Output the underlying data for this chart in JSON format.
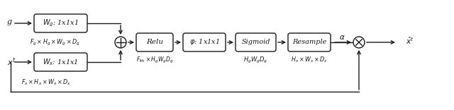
{
  "bg_color": "#ffffff",
  "line_color": "#1a1a1a",
  "box_color": "#ffffff",
  "box_edge": "#1a1a1a",
  "fig_width": 6.4,
  "fig_height": 1.56,
  "dpi": 100,
  "g_label": "g",
  "wg_box_label": "$W_g$: 1x1x1",
  "wg_box_subscript": "$F_g \\times H_g \\times W_g \\times D_g$",
  "xt_label": "$x^t$",
  "wx_box_label": "$W_x$: 1x1x1",
  "wx_box_subscript": "$F_x \\times H_x \\times W_x \\times D_x$",
  "relu_label": "Relu",
  "relu_subscript": "$F_{\\mathrm{ith}} \\times H_g W_g D_g$",
  "phi_label": "$\\varphi$: 1x1x1",
  "sigmoid_label": "Sigmoid",
  "sigmoid_subscript": "$H_g W_g D_g$",
  "resample_label": "Resample",
  "resample_subscript": "$H_x \\times W_x \\times D_x$",
  "alpha_label": "$\\alpha$",
  "xhat_label": "$\\hat{x}^t$"
}
